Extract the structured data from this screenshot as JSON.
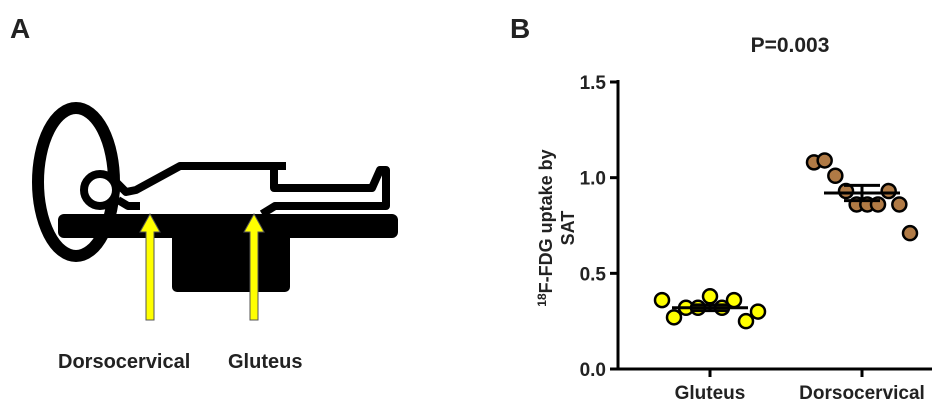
{
  "panel_a": {
    "label": "A",
    "sites": [
      "Dorsocervical",
      "Gluteus"
    ]
  },
  "panel_b": {
    "label": "B"
  },
  "chart_data": {
    "type": "dot",
    "title": "P=0.003",
    "ylabel_sup": "18",
    "ylabel": [
      "F-FDG uptake by",
      "SAT"
    ],
    "categories": [
      "Gluteus",
      "Dorsocervical"
    ],
    "groups": [
      {
        "color": "#ffff00",
        "values": [
          0.36,
          0.27,
          0.32,
          0.32,
          0.38,
          0.32,
          0.36,
          0.25,
          0.3
        ],
        "mean": 0.32,
        "sem": 0.015
      },
      {
        "color": "#b07a45",
        "values": [
          1.08,
          1.09,
          1.01,
          0.93,
          0.86,
          0.86,
          0.86,
          0.93,
          0.86,
          0.71
        ],
        "mean": 0.92,
        "sem": 0.04
      }
    ],
    "ylim": [
      0,
      1.5
    ],
    "yticks": [
      {
        "value": 0,
        "label": "0.0"
      },
      0.5,
      {
        "value": 1,
        "label": "1.0"
      },
      1.5
    ]
  }
}
